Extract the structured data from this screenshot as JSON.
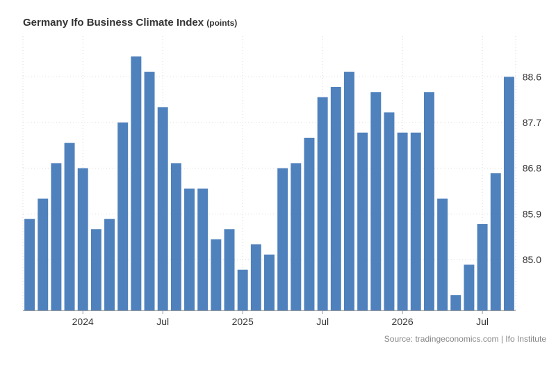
{
  "chart_data": {
    "type": "bar",
    "title": "Germany Ifo Business Climate Index",
    "unit_label": "(points)",
    "source": "Source: tradingeconomics.com | Ifo Institute",
    "series": [
      {
        "name": "",
        "color": "#4f81bd",
        "values": [
          85.8,
          86.2,
          86.9,
          87.3,
          86.8,
          85.6,
          85.8,
          87.7,
          89.0,
          88.7,
          88.0,
          86.9,
          86.4,
          86.4,
          85.4,
          85.6,
          84.8,
          85.3,
          85.1,
          86.8,
          86.9,
          87.4,
          88.2,
          88.4,
          88.7,
          87.5,
          88.3,
          87.9,
          87.5,
          87.5,
          88.3,
          86.2,
          84.3,
          84.9,
          85.7,
          86.7,
          88.6
        ]
      }
    ],
    "x_labels": [
      {
        "index": 4.5,
        "label": "2024"
      },
      {
        "index": 10.5,
        "label": "Jul"
      },
      {
        "index": 16.5,
        "label": "2025"
      },
      {
        "index": 22.5,
        "label": "Jul"
      },
      {
        "index": 28.5,
        "label": "2026"
      },
      {
        "index": 34.5,
        "label": "Jul"
      }
    ],
    "yticks": [
      "85.0",
      "85.9",
      "86.8",
      "87.7",
      "88.6"
    ],
    "ylim": [
      84.0,
      89.4
    ],
    "grid": true,
    "legend": "none"
  }
}
